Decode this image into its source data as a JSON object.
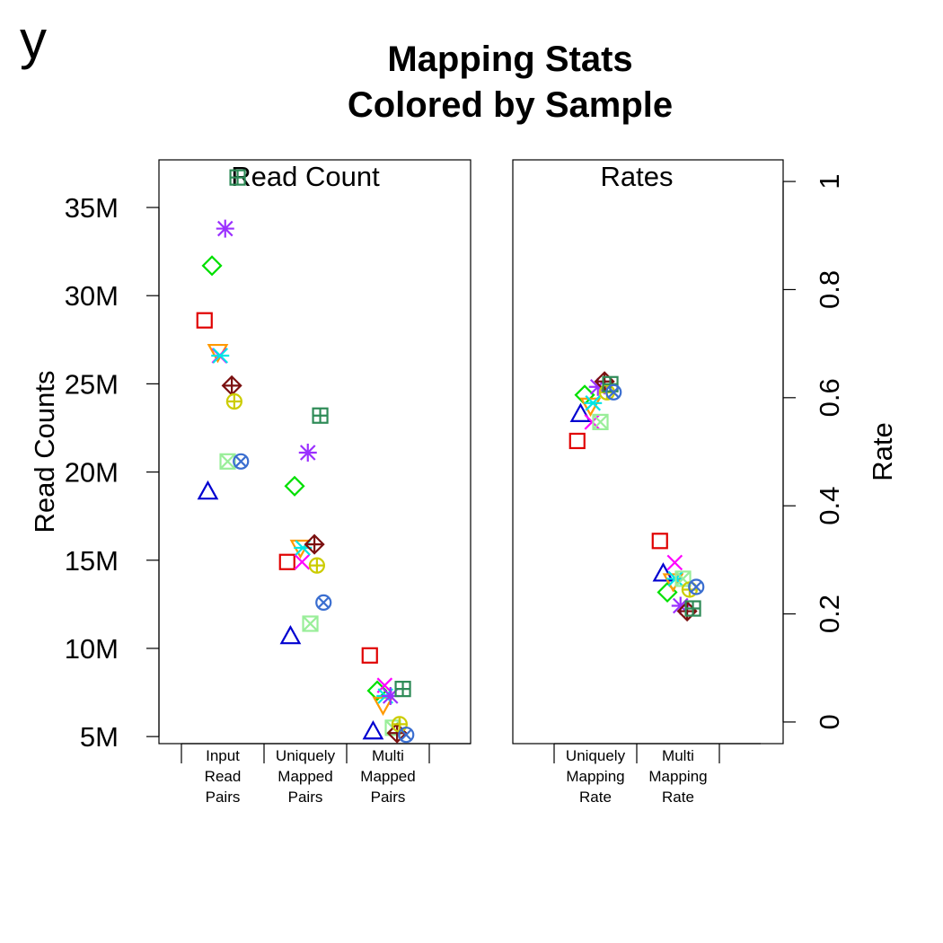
{
  "figure": {
    "corner_tag": "y",
    "title_lines": [
      "Mapping Stats",
      "Colored by Sample"
    ]
  },
  "chart_data": [
    {
      "type": "scatter",
      "panel_title": "Read Count",
      "ylabel": "Read Counts",
      "ylim": [
        4.6,
        37.7
      ],
      "y_ticks": [
        {
          "value": 5,
          "label": "5M"
        },
        {
          "value": 10,
          "label": "10M"
        },
        {
          "value": 15,
          "label": "15M"
        },
        {
          "value": 20,
          "label": "20M"
        },
        {
          "value": 25,
          "label": "25M"
        },
        {
          "value": 30,
          "label": "30M"
        },
        {
          "value": 35,
          "label": "35M"
        }
      ],
      "y_unit": "millions",
      "categories": [
        {
          "lines": [
            "Input",
            "Read",
            "Pairs"
          ]
        },
        {
          "lines": [
            "Uniquely",
            "Mapped",
            "Pairs"
          ]
        },
        {
          "lines": [
            "Multi",
            "Mapped",
            "Pairs"
          ]
        }
      ],
      "series": [
        {
          "color": "#e00000",
          "pch": "square",
          "jitter": -0.22,
          "values": [
            28.6,
            14.9,
            9.6
          ]
        },
        {
          "color": "#0000d0",
          "pch": "triangle-up",
          "jitter": -0.18,
          "values": [
            18.9,
            10.7,
            5.3
          ]
        },
        {
          "color": "#00e000",
          "pch": "diamond",
          "jitter": -0.13,
          "values": [
            31.7,
            19.2,
            7.6
          ]
        },
        {
          "color": "#ff9900",
          "pch": "triangle-down",
          "jitter": -0.06,
          "values": [
            26.8,
            15.7,
            6.8
          ]
        },
        {
          "color": "#ff00ff",
          "pch": "x",
          "jitter": -0.04,
          "values": [
            26.6,
            14.9,
            7.9
          ]
        },
        {
          "color": "#00e5e5",
          "pch": "asterisk6",
          "jitter": -0.03,
          "values": [
            26.6,
            15.7,
            7.3
          ]
        },
        {
          "color": "#99ee99",
          "pch": "boxed-x",
          "jitter": 0.06,
          "values": [
            20.6,
            11.4,
            5.5
          ]
        },
        {
          "color": "#9b30ff",
          "pch": "asterisk8",
          "jitter": 0.03,
          "values": [
            33.8,
            21.1,
            7.3
          ]
        },
        {
          "color": "#7b1010",
          "pch": "diamond-plus",
          "jitter": 0.11,
          "values": [
            24.9,
            15.9,
            5.2
          ]
        },
        {
          "color": "#cccc00",
          "pch": "circle-plus",
          "jitter": 0.14,
          "values": [
            24.0,
            14.7,
            5.7
          ]
        },
        {
          "color": "#2e8b57",
          "pch": "square-plus",
          "jitter": 0.18,
          "values": [
            36.7,
            23.2,
            7.7
          ]
        },
        {
          "color": "#3a6ed0",
          "pch": "circle-x",
          "jitter": 0.22,
          "values": [
            20.6,
            12.6,
            5.1
          ]
        }
      ]
    },
    {
      "type": "scatter",
      "panel_title": "Rates",
      "ylabel": "Rate",
      "y_axis_side": "right",
      "ylim": [
        -0.04,
        1.04
      ],
      "y_ticks": [
        {
          "value": 0,
          "label": "0"
        },
        {
          "value": 0.2,
          "label": "0.2"
        },
        {
          "value": 0.4,
          "label": "0.4"
        },
        {
          "value": 0.6,
          "label": "0.6"
        },
        {
          "value": 0.8,
          "label": "0.8"
        },
        {
          "value": 1,
          "label": "1"
        }
      ],
      "categories": [
        {
          "lines": [
            "Uniquely",
            "Mapping",
            "Rate"
          ]
        },
        {
          "lines": [
            "Multi",
            "Mapping",
            "Rate"
          ]
        }
      ],
      "series": [
        {
          "color": "#e00000",
          "pch": "square",
          "jitter": -0.22,
          "values": [
            0.52,
            0.335
          ]
        },
        {
          "color": "#0000d0",
          "pch": "triangle-up",
          "jitter": -0.18,
          "values": [
            0.57,
            0.275
          ]
        },
        {
          "color": "#00e000",
          "pch": "diamond",
          "jitter": -0.13,
          "values": [
            0.605,
            0.24
          ]
        },
        {
          "color": "#ff9900",
          "pch": "triangle-down",
          "jitter": -0.06,
          "values": [
            0.585,
            0.26
          ]
        },
        {
          "color": "#ff00ff",
          "pch": "x",
          "jitter": -0.04,
          "values": [
            0.555,
            0.295
          ]
        },
        {
          "color": "#00e5e5",
          "pch": "asterisk6",
          "jitter": -0.03,
          "values": [
            0.59,
            0.265
          ]
        },
        {
          "color": "#99ee99",
          "pch": "boxed-x",
          "jitter": 0.06,
          "values": [
            0.555,
            0.265
          ]
        },
        {
          "color": "#9b30ff",
          "pch": "asterisk8",
          "jitter": 0.03,
          "values": [
            0.62,
            0.215
          ]
        },
        {
          "color": "#7b1010",
          "pch": "diamond-plus",
          "jitter": 0.11,
          "values": [
            0.63,
            0.205
          ]
        },
        {
          "color": "#cccc00",
          "pch": "circle-plus",
          "jitter": 0.14,
          "values": [
            0.61,
            0.245
          ]
        },
        {
          "color": "#2e8b57",
          "pch": "square-plus",
          "jitter": 0.18,
          "values": [
            0.625,
            0.21
          ]
        },
        {
          "color": "#3a6ed0",
          "pch": "circle-x",
          "jitter": 0.22,
          "values": [
            0.61,
            0.25
          ]
        }
      ]
    }
  ]
}
